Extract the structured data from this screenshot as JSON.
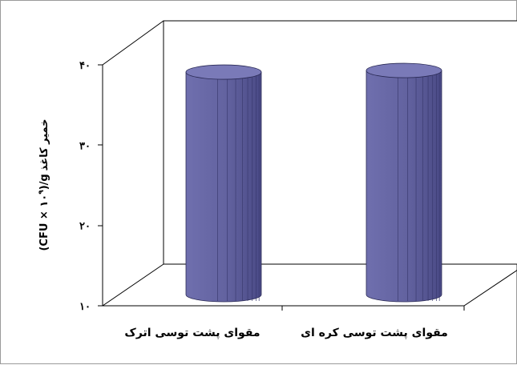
{
  "chart_data": {
    "type": "bar",
    "style": "3d-cylinder",
    "categories": [
      "مقوای پشت توسی اترک",
      "مقوای پشت توسی کره ای"
    ],
    "values": [
      37.6,
      37.8
    ],
    "ylabel_parts": {
      "unit": "(CFU × ۱۰",
      "exponent": "۹",
      "rest": ")/g",
      "label": "خمیر کاغذ"
    },
    "ylim": [
      10,
      40
    ],
    "yticks": [
      10,
      20,
      30,
      40
    ],
    "ytick_labels": [
      "۱۰",
      "۲۰",
      "۳۰",
      "۴۰"
    ],
    "grid": false,
    "legend": "none",
    "bar_color": "#6666a3"
  }
}
